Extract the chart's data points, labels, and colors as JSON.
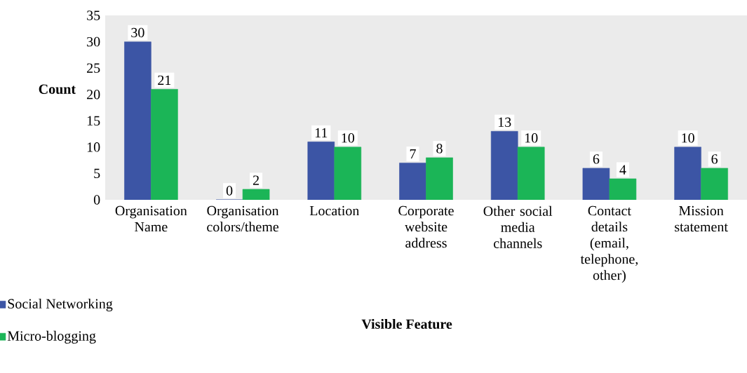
{
  "chart_data": {
    "type": "bar",
    "xlabel": "Visible Feature",
    "ylabel": "Count",
    "categories": [
      "Organisation Name",
      "Organisation colors/theme",
      "Location",
      "Corporate website address",
      "Other social media channels",
      "Contact details (email, telephone, other)",
      "Mission statement"
    ],
    "series": [
      {
        "name": "Social Networking",
        "color": "#3c55a5",
        "values": [
          30,
          0,
          11,
          7,
          13,
          6,
          10
        ]
      },
      {
        "name": "Micro-blogging",
        "color": "#1bb557",
        "values": [
          21,
          2,
          10,
          8,
          10,
          4,
          6
        ]
      }
    ],
    "ylim": [
      0,
      35
    ],
    "yticks": [
      0,
      5,
      10,
      15,
      20,
      25,
      30,
      35
    ],
    "data_labels": true,
    "legend": "bottom left",
    "grid": false
  }
}
